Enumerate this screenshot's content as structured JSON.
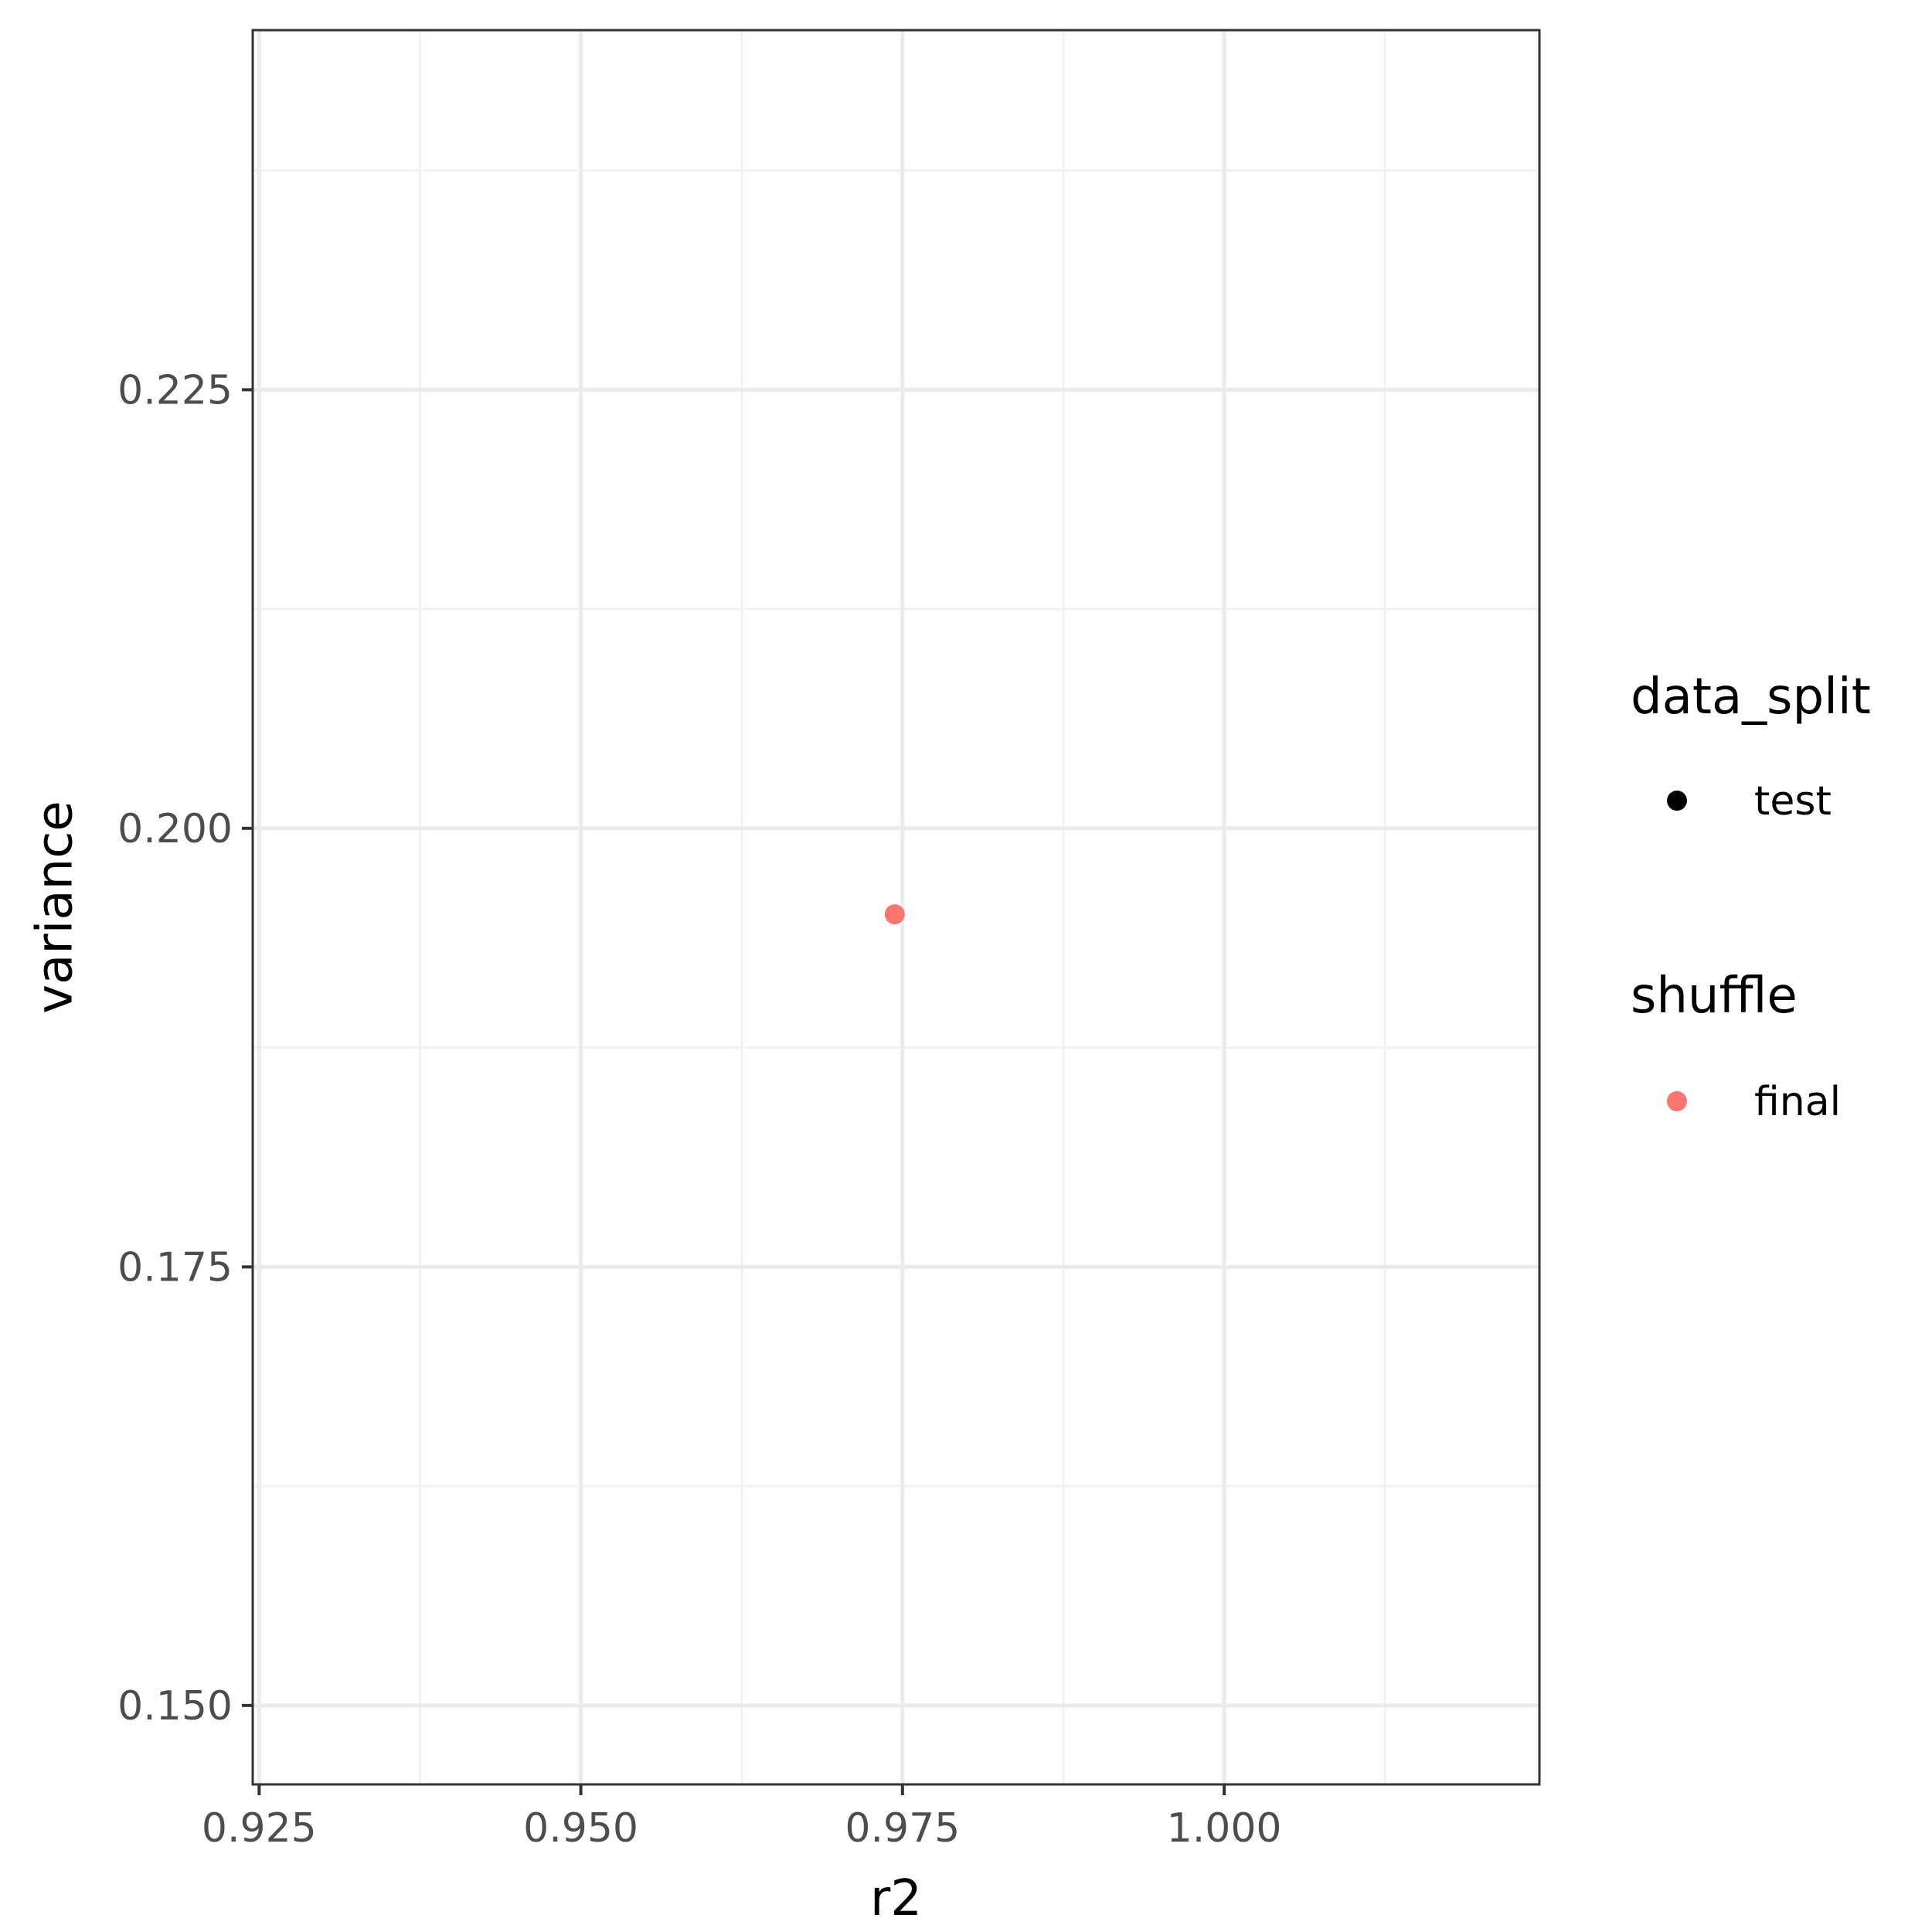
{
  "chart_data": {
    "type": "scatter",
    "xlabel": "r2",
    "ylabel": "variance",
    "xlim": [
      0.9245,
      1.0245
    ],
    "ylim": [
      0.1455,
      0.2455
    ],
    "x_ticks": [
      0.925,
      0.95,
      0.975,
      1.0
    ],
    "x_tick_labels": [
      "0.925",
      "0.950",
      "0.975",
      "1.000"
    ],
    "x_minor_ticks": [
      0.9375,
      0.9625,
      0.9875,
      1.0125
    ],
    "y_ticks": [
      0.15,
      0.175,
      0.2,
      0.225
    ],
    "y_tick_labels": [
      "0.150",
      "0.175",
      "0.200",
      "0.225"
    ],
    "y_minor_ticks": [
      0.1625,
      0.1875,
      0.2125,
      0.2375
    ],
    "grid": true,
    "points": [
      {
        "x": 0.9744,
        "y": 0.1951,
        "data_split": "test",
        "shuffle": "final",
        "color": "#F8766D"
      }
    ],
    "legend_placement": "right",
    "legends": [
      {
        "title": "data_split",
        "items": [
          {
            "label": "test",
            "color": "#000000"
          }
        ]
      },
      {
        "title": "shuffle",
        "items": [
          {
            "label": "final",
            "color": "#F8766D"
          }
        ]
      }
    ]
  },
  "colors": {
    "panel_border": "#333333",
    "grid_major": "#ebebeb",
    "grid_minor": "#f2f2f2",
    "point": "#F8766D"
  }
}
